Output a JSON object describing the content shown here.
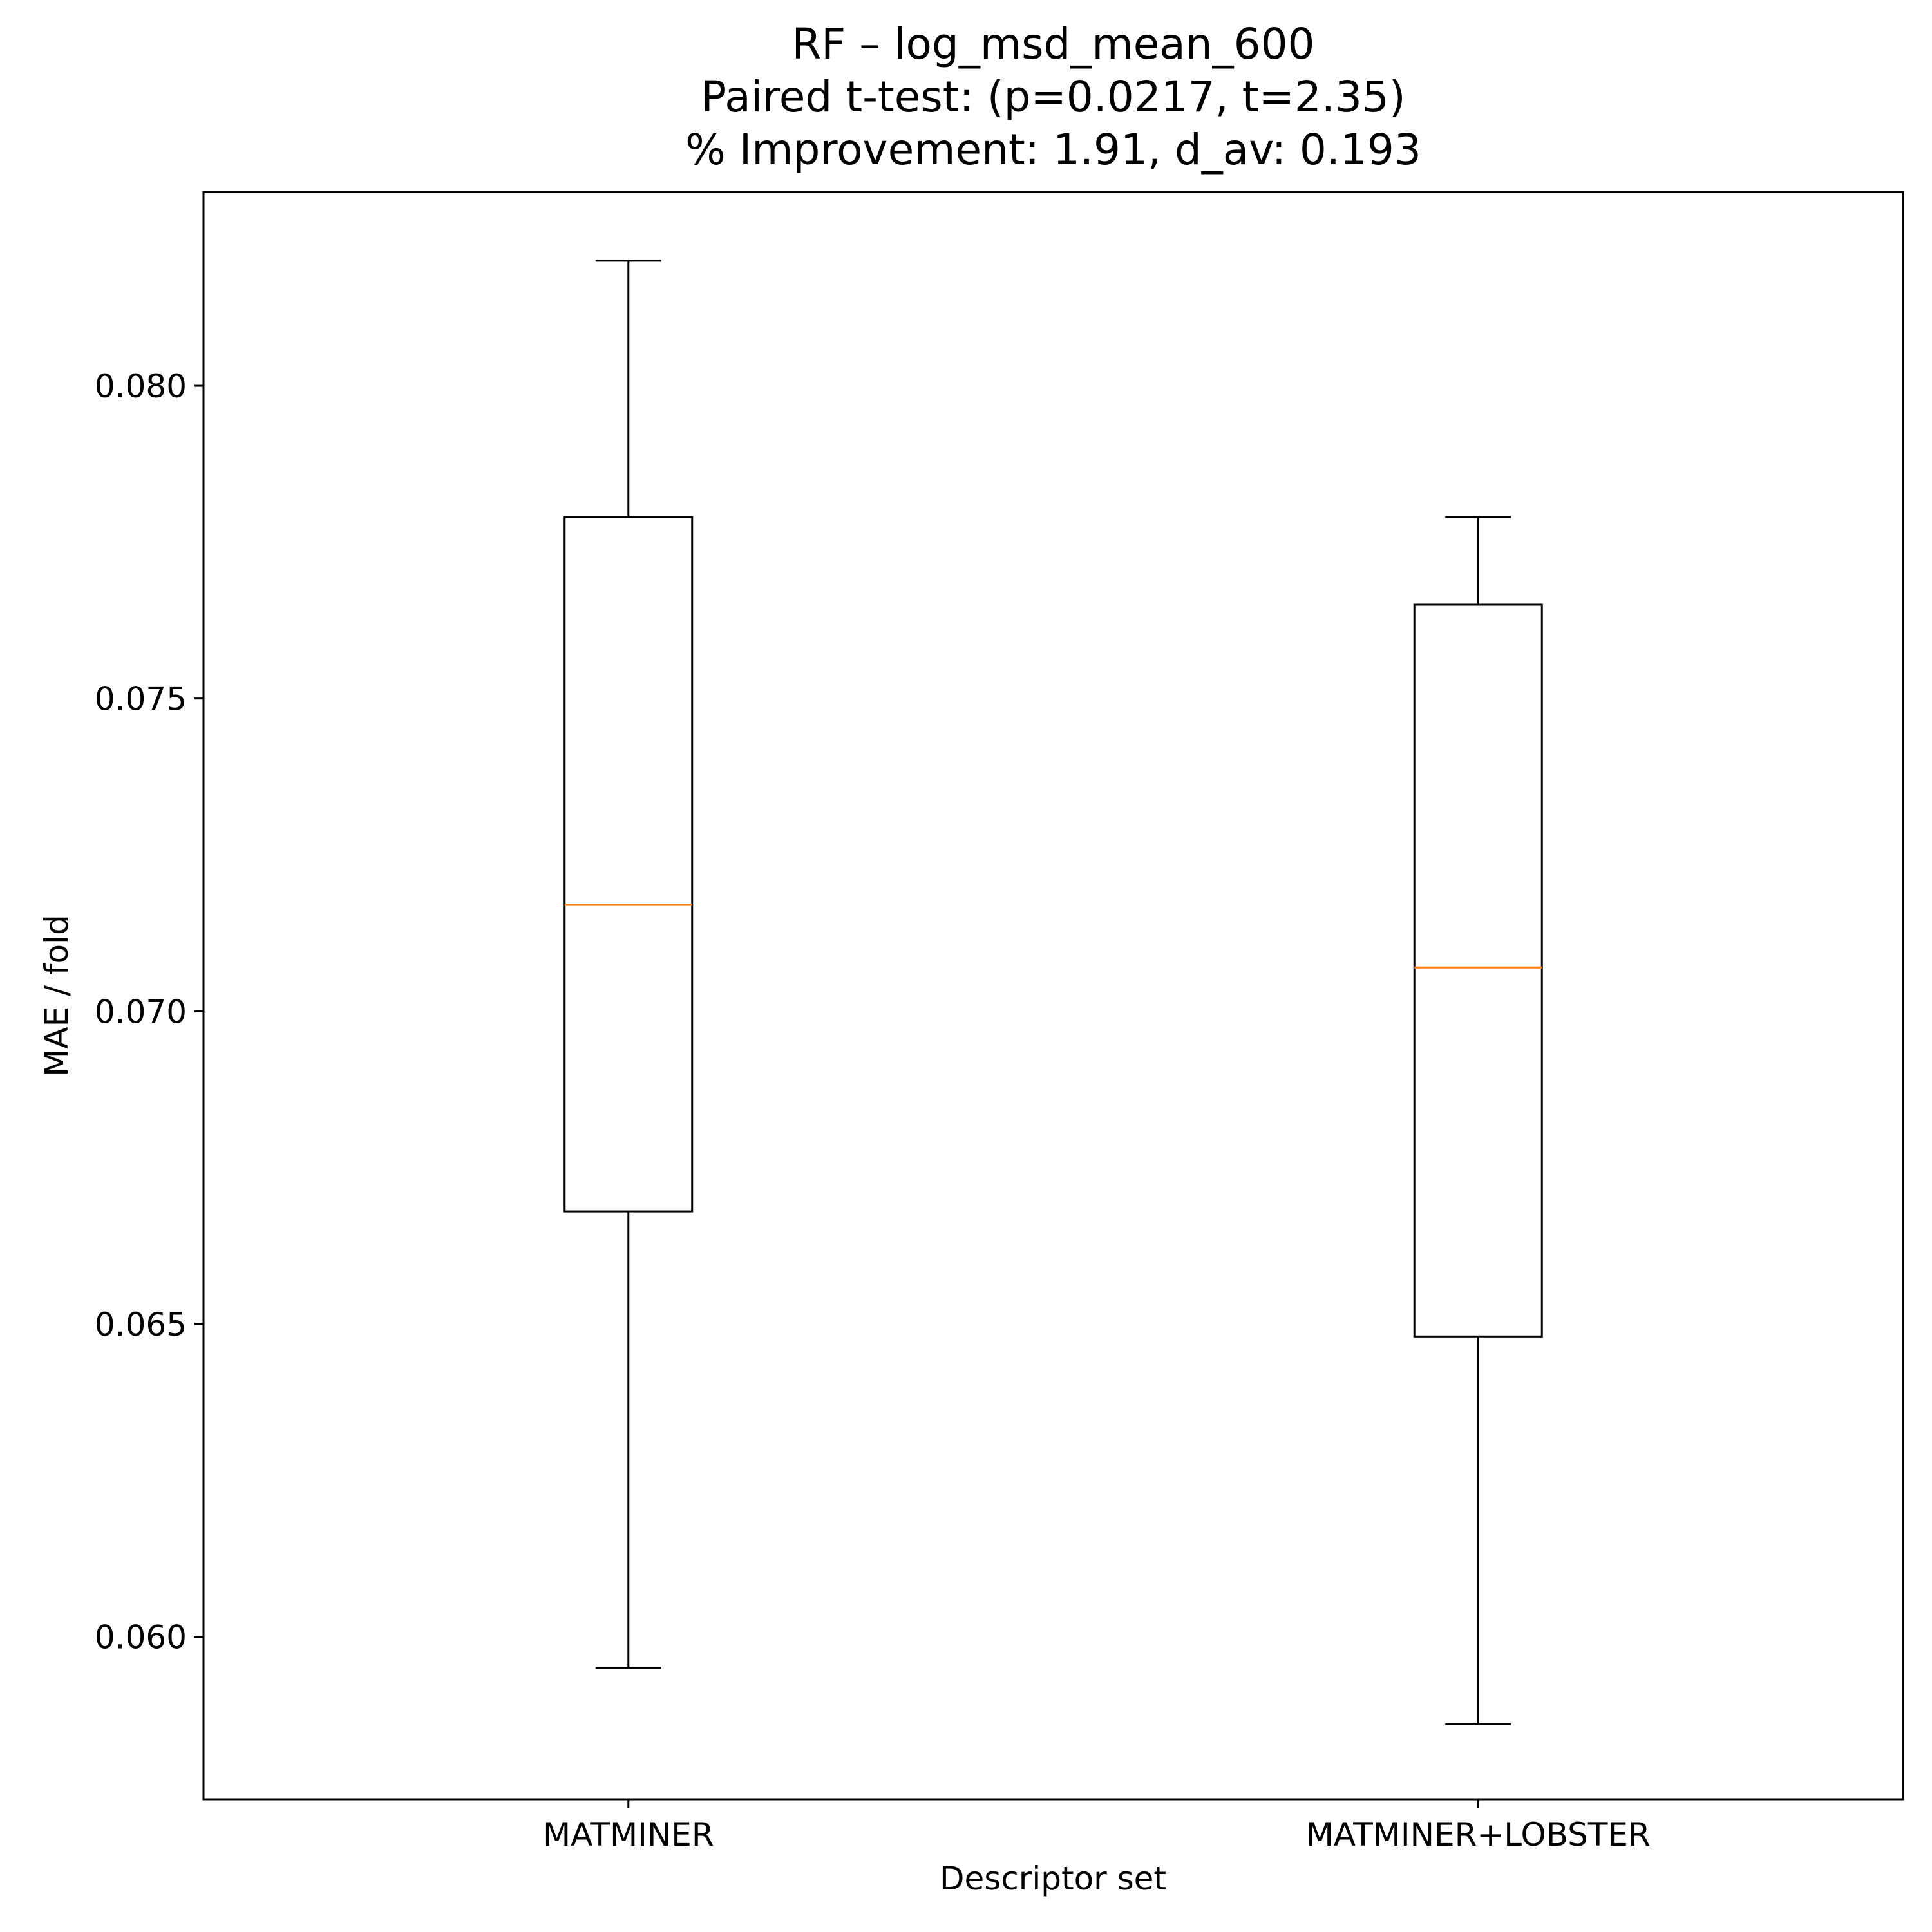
{
  "chart_data": {
    "type": "box",
    "title_lines": [
      "RF – log_msd_mean_600",
      "Paired t-test: (p=0.0217, t=2.35)",
      "% Improvement: 1.91, d_av: 0.193"
    ],
    "xlabel": "Descriptor set",
    "ylabel": "MAE / fold",
    "categories": [
      "MATMINER",
      "MATMINER+LOBSTER"
    ],
    "ylim": [
      0.0574,
      0.0831
    ],
    "yticks": [
      0.06,
      0.065,
      0.07,
      0.075,
      0.08
    ],
    "ytick_labels": [
      "0.060",
      "0.065",
      "0.070",
      "0.075",
      "0.080"
    ],
    "grid": false,
    "legend": null,
    "boxes": [
      {
        "name": "MATMINER",
        "whisker_low": 0.0595,
        "q1": 0.0668,
        "median": 0.0717,
        "q3": 0.0779,
        "whisker_high": 0.082
      },
      {
        "name": "MATMINER+LOBSTER",
        "whisker_low": 0.0586,
        "q1": 0.0648,
        "median": 0.0707,
        "q3": 0.0765,
        "whisker_high": 0.0779
      }
    ],
    "colors": {
      "box": "#000000",
      "median": "#ff7f0e",
      "background": "#ffffff"
    }
  }
}
